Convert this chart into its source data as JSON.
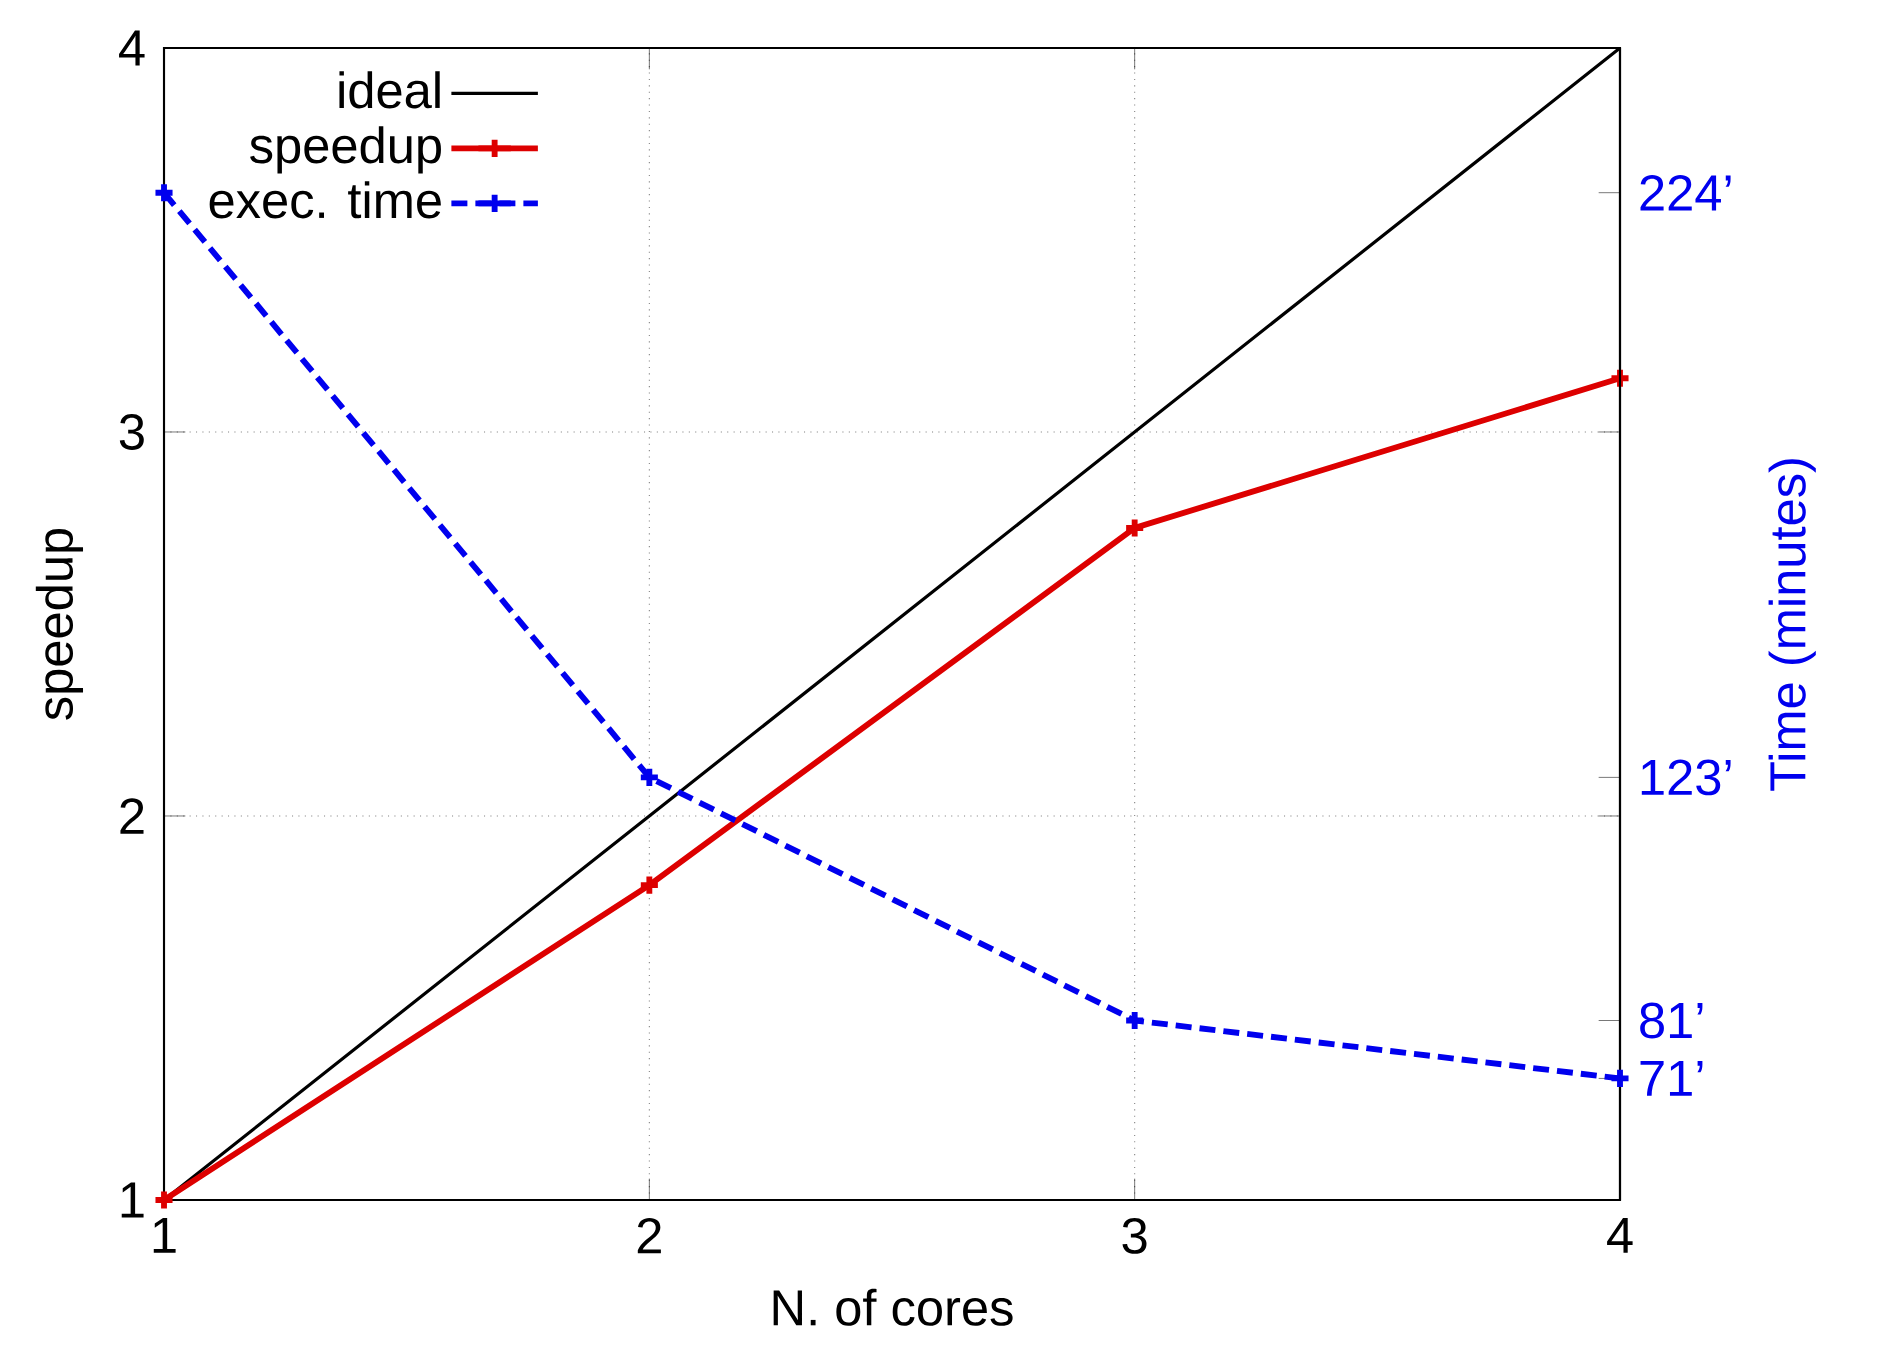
{
  "chart_data": {
    "type": "line",
    "xlabel": "N. of cores",
    "ylabel": "speedup",
    "y2label": "Time (minutes)",
    "grid": true,
    "legend": "top left",
    "x": [
      1,
      2,
      3,
      4
    ],
    "xlim": [
      1,
      4
    ],
    "xticks": [
      1,
      2,
      3,
      4
    ],
    "ylim": [
      1,
      4
    ],
    "yticks": [
      1,
      2,
      3,
      4
    ],
    "y2lim": [
      50,
      249
    ],
    "y2ticks": [
      {
        "value": 224,
        "label": "224’"
      },
      {
        "value": 123,
        "label": "123’"
      },
      {
        "value": 81,
        "label": "81’"
      },
      {
        "value": 71,
        "label": "71’"
      }
    ],
    "series": [
      {
        "name": "ideal",
        "color": "#000000",
        "values": [
          1,
          2,
          3,
          4
        ],
        "marker": "none",
        "line_style": "solid"
      },
      {
        "name": "speedup",
        "color": "#dd0000",
        "values": [
          1,
          1.82,
          2.75,
          3.14
        ],
        "marker": "cross",
        "line_style": "solid"
      },
      {
        "name": "exec. time",
        "color": "#0000ee",
        "values": [
          224,
          123,
          81,
          71
        ],
        "axis": "y2",
        "marker": "cross",
        "line_style": "dashed"
      }
    ]
  }
}
